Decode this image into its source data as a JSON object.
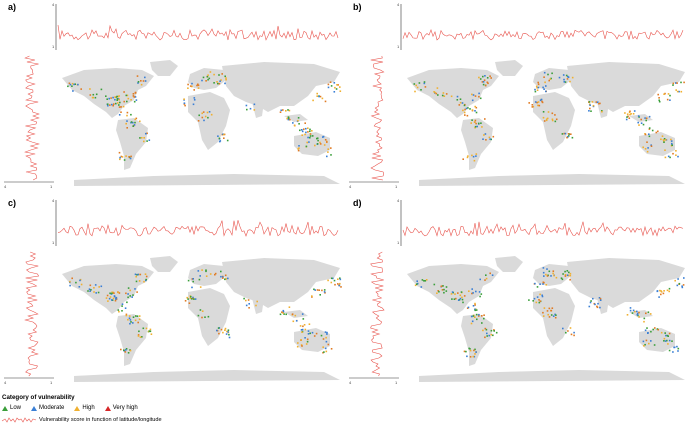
{
  "panels": [
    {
      "label": "a)",
      "top_ticks": [
        "4",
        "1"
      ],
      "left_ticks": [
        "4",
        "1"
      ]
    },
    {
      "label": "b)",
      "top_ticks": [
        "4",
        "1"
      ],
      "left_ticks": [
        "4",
        "1"
      ]
    },
    {
      "label": "c)",
      "top_ticks": [
        "4",
        "1"
      ],
      "left_ticks": [
        "4",
        "1"
      ]
    },
    {
      "label": "d)",
      "top_ticks": [
        "4",
        "1"
      ],
      "left_ticks": [
        "4",
        "1"
      ]
    }
  ],
  "legend": {
    "title": "Category of vulnerability",
    "items": [
      {
        "label": "Low",
        "color": "#3a9e3a"
      },
      {
        "label": "Moderate",
        "color": "#3a7fd5"
      },
      {
        "label": "High",
        "color": "#f0b030"
      },
      {
        "label": "Very high",
        "color": "#d62728"
      }
    ],
    "line_label": "Vulnerability score in function of latitude/longitude",
    "line_color": "#e8554e"
  },
  "colors": {
    "land": "#dadada"
  }
}
